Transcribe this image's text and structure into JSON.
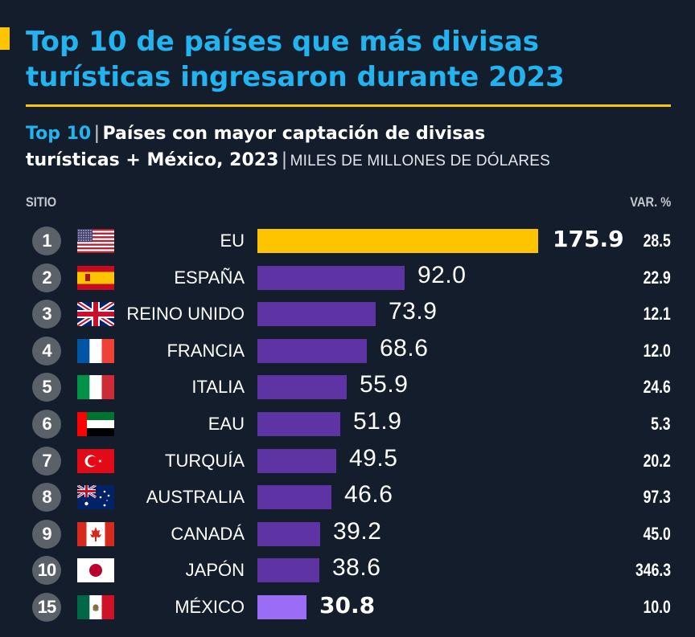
{
  "title": {
    "line1": "Top 10 de países que más divisas",
    "line2": "turísticas ingresaron durante 2023"
  },
  "subtitle": {
    "lead": "Top 10",
    "sep": "|",
    "line1": "Países con mayor captación de divisas",
    "line2": "turísticas + México, 2023",
    "unit": "MILES DE MILLONES DE DÓLARES"
  },
  "columns": {
    "rank": "SITIO",
    "var": "VAR. %"
  },
  "colors": {
    "background": "#141d2b",
    "title": "#21b4f0",
    "accent": "#ffc400",
    "bar": "#5e34a5",
    "bar_highlight": "#ffc400",
    "bar_mexico": "#9b6cf6"
  },
  "chart_data": {
    "type": "bar",
    "orientation": "horizontal",
    "categories": [
      "EU",
      "ESPAÑA",
      "REINO UNIDO",
      "FRANCIA",
      "ITALIA",
      "EAU",
      "TURQUÍA",
      "AUSTRALIA",
      "CANADÁ",
      "JAPÓN",
      "MÉXICO"
    ],
    "ranks": [
      "1",
      "2",
      "3",
      "4",
      "5",
      "6",
      "7",
      "8",
      "9",
      "10",
      "15"
    ],
    "values": [
      175.9,
      92.0,
      73.9,
      68.6,
      55.9,
      51.9,
      49.5,
      46.6,
      39.2,
      38.6,
      30.8
    ],
    "value_labels": [
      "175.9",
      "92.0",
      "73.9",
      "68.6",
      "55.9",
      "51.9",
      "49.5",
      "46.6",
      "39.2",
      "38.6",
      "30.8"
    ],
    "var_pct": [
      "28.5",
      "22.9",
      "12.1",
      "12.0",
      "24.6",
      "5.3",
      "20.2",
      "97.3",
      "45.0",
      "346.3",
      "10.0"
    ],
    "flags": [
      "usa-flag-icon",
      "spain-flag-icon",
      "uk-flag-icon",
      "france-flag-icon",
      "italy-flag-icon",
      "uae-flag-icon",
      "turkey-flag-icon",
      "australia-flag-icon",
      "canada-flag-icon",
      "japan-flag-icon",
      "mexico-flag-icon"
    ],
    "xlim": [
      0,
      175.9
    ],
    "grid": false
  }
}
